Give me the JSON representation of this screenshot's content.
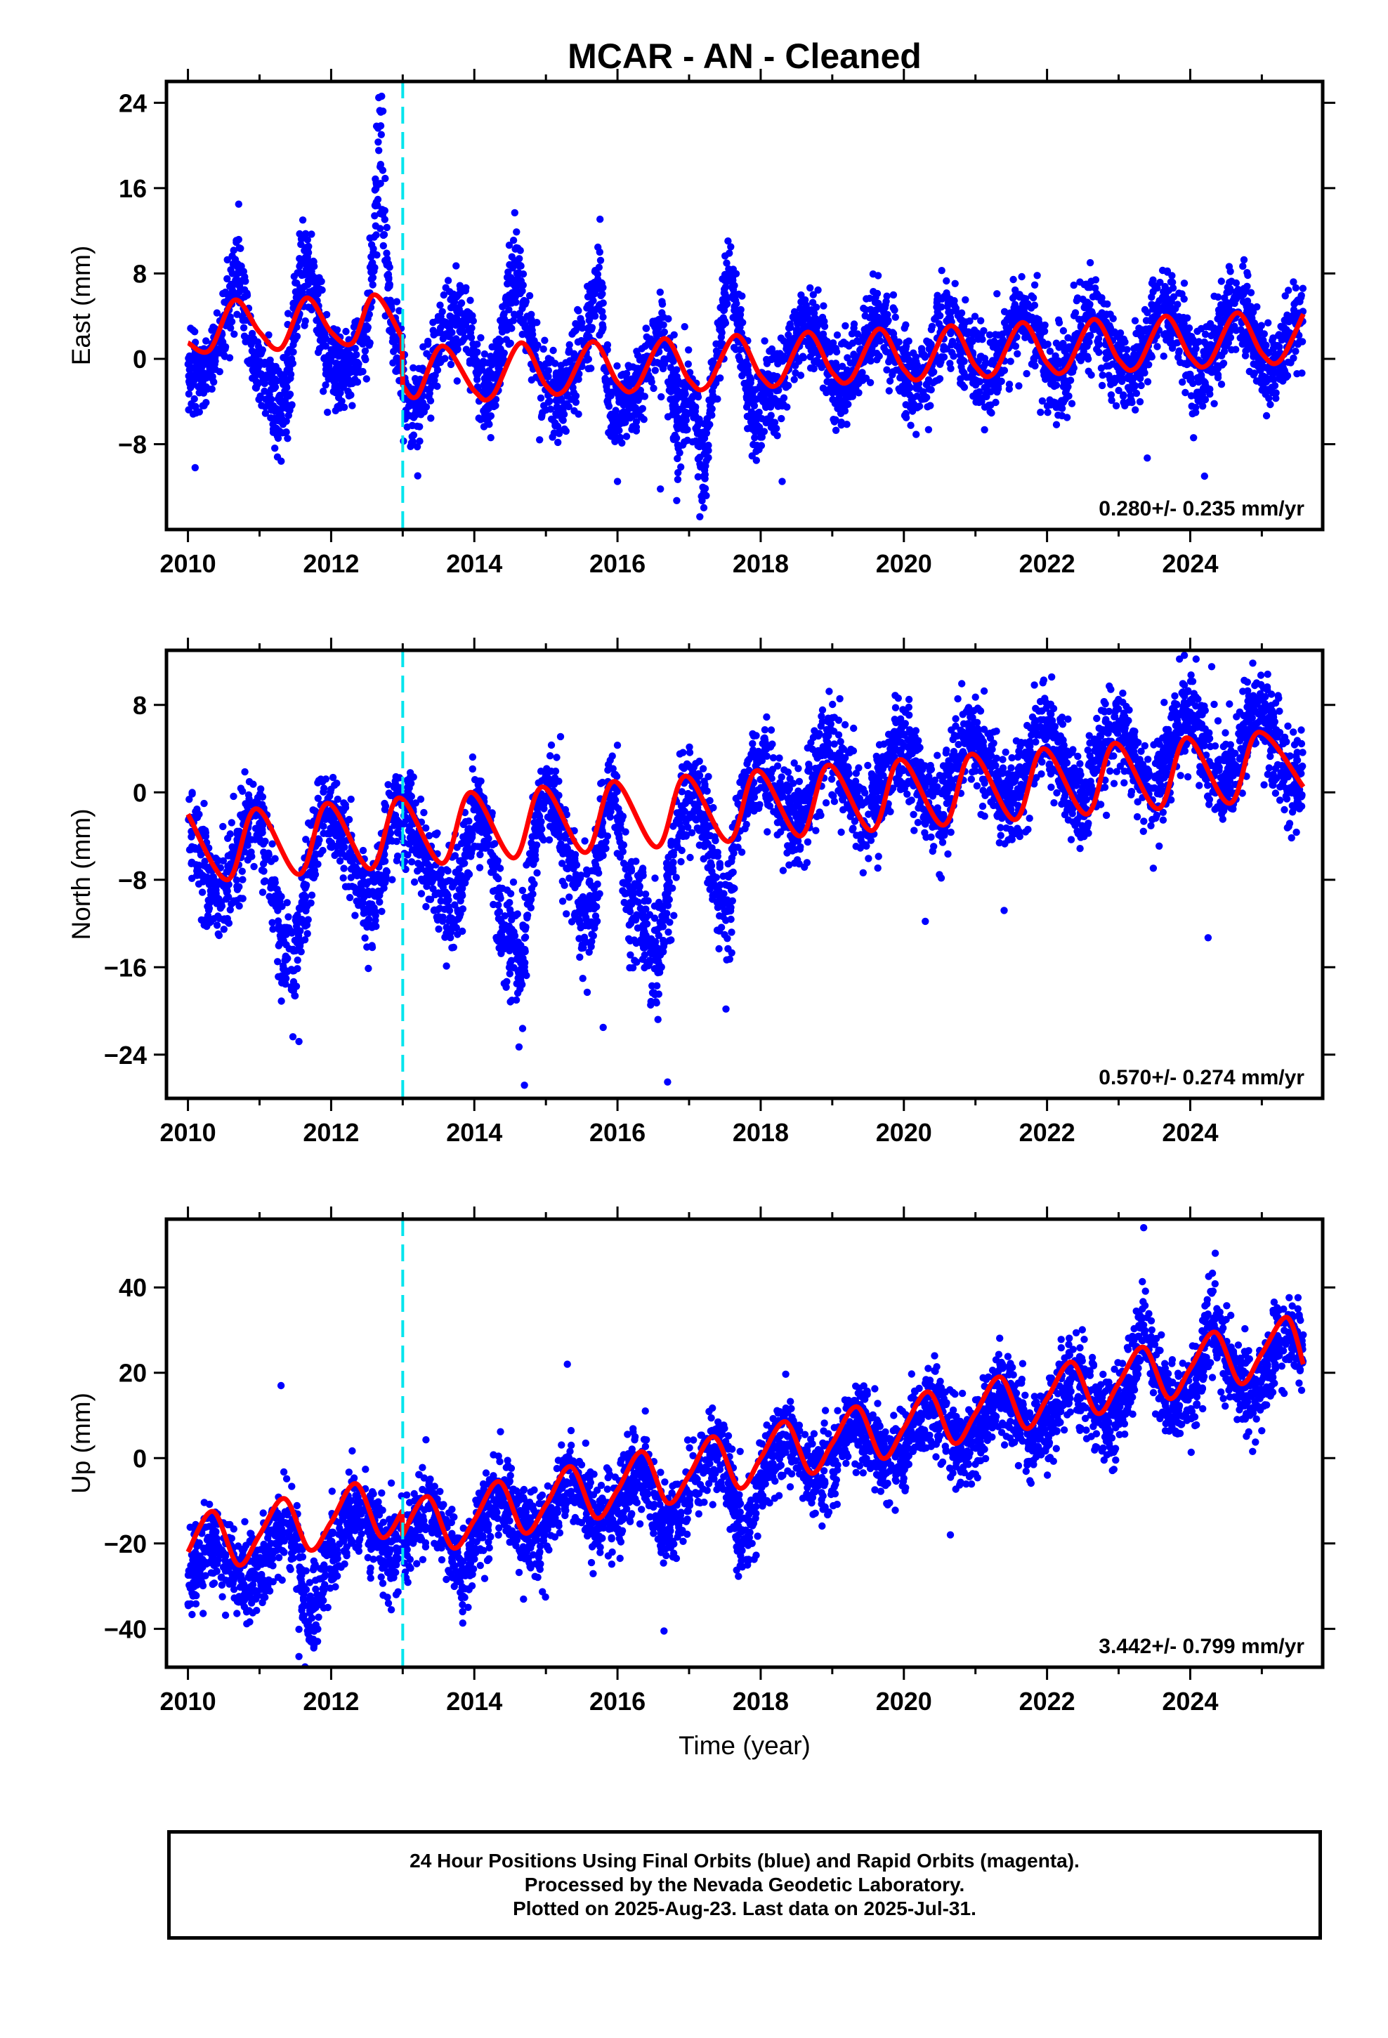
{
  "title": "MCAR  - AN - Cleaned",
  "colors": {
    "data": "#0000ff",
    "model": "#ff0000",
    "offset": "#00e5ee",
    "frame": "#000000"
  },
  "chart_data": [
    {
      "type": "scatter",
      "ylabel": "East (mm)",
      "xlim": [
        2009.7,
        2025.85
      ],
      "ylim": [
        -16,
        26
      ],
      "xticks": [
        2010,
        2012,
        2014,
        2016,
        2018,
        2020,
        2022,
        2024
      ],
      "yticks": [
        -8,
        0,
        8,
        16,
        24
      ],
      "ytick_labels": [
        "−8",
        "0",
        "8",
        "16",
        "24"
      ],
      "rate": "0.280+/- 0.235 mm/yr",
      "offset_line_x": 2013.0,
      "model": {
        "x": [
          2010.0,
          2010.3,
          2010.65,
          2011.0,
          2011.3,
          2011.65,
          2012.0,
          2012.3,
          2012.6,
          2012.99,
          2013.0,
          2013.2,
          2013.55,
          2014.0,
          2014.25,
          2014.65,
          2015.0,
          2015.25,
          2015.65,
          2016.0,
          2016.25,
          2016.65,
          2017.0,
          2017.25,
          2017.65,
          2018.0,
          2018.25,
          2018.65,
          2019.0,
          2019.25,
          2019.65,
          2020.0,
          2020.25,
          2020.65,
          2021.0,
          2021.25,
          2021.65,
          2022.0,
          2022.25,
          2022.65,
          2023.0,
          2023.25,
          2023.65,
          2024.0,
          2024.25,
          2024.65,
          2025.0,
          2025.25,
          2025.58
        ],
        "y": [
          1.5,
          0.8,
          5.5,
          2.5,
          1.0,
          5.7,
          2.5,
          1.5,
          6.0,
          2.0,
          -2.5,
          -3.5,
          1.2,
          -3.0,
          -3.5,
          1.5,
          -2.5,
          -3.0,
          1.6,
          -2.2,
          -2.8,
          1.9,
          -2.0,
          -2.6,
          2.2,
          -1.6,
          -2.3,
          2.5,
          -1.3,
          -2.0,
          2.8,
          -1.0,
          -1.7,
          3.1,
          -0.7,
          -1.4,
          3.4,
          -0.4,
          -1.1,
          3.7,
          -0.1,
          -0.8,
          4.0,
          0.2,
          -0.5,
          4.3,
          0.5,
          -0.2,
          4.2
        ]
      },
      "scatter": {
        "seed": 11,
        "t0": 2010.0,
        "t1": 2025.58,
        "count": 4300,
        "trend": 0.28,
        "intercept_year": 2018.0,
        "intercept": 0.0,
        "amplitude": 2.9,
        "phase_year": 2010.65,
        "step": {
          "year": 2013.0,
          "before": 3.2,
          "after": 0.0
        },
        "noise": 2.0,
        "excursions": [
          {
            "t": 2012.68,
            "w": 0.09,
            "d": 17.0
          },
          {
            "t": 2010.7,
            "w": 0.12,
            "d": 4.5
          },
          {
            "t": 2011.62,
            "w": 0.18,
            "d": 5.0
          },
          {
            "t": 2013.9,
            "w": 0.22,
            "d": 4.5
          },
          {
            "t": 2014.55,
            "w": 0.18,
            "d": 7.0
          },
          {
            "t": 2015.75,
            "w": 0.12,
            "d": 6.5
          },
          {
            "t": 2017.55,
            "w": 0.1,
            "d": 6.0
          },
          {
            "t": 2015.9,
            "w": 0.12,
            "d": -7.0
          },
          {
            "t": 2016.85,
            "w": 0.15,
            "d": -7.0
          },
          {
            "t": 2017.2,
            "w": 0.1,
            "d": -8.0
          },
          {
            "t": 2017.9,
            "w": 0.12,
            "d": -5.5
          },
          {
            "t": 2011.35,
            "w": 0.18,
            "d": -5.0
          }
        ],
        "outliers": [
          [
            2010.1,
            -10.2
          ],
          [
            2011.25,
            -9.2
          ],
          [
            2016.0,
            -11.5
          ],
          [
            2017.15,
            -14.8
          ],
          [
            2018.3,
            -11.5
          ],
          [
            2023.4,
            -9.3
          ],
          [
            2024.2,
            -11.0
          ],
          [
            2016.6,
            -12.2
          ],
          [
            2021.3,
            6.1
          ],
          [
            2022.6,
            6.7
          ]
        ]
      }
    },
    {
      "type": "scatter",
      "ylabel": "North (mm)",
      "xlim": [
        2009.7,
        2025.85
      ],
      "ylim": [
        -28,
        13
      ],
      "xticks": [
        2010,
        2012,
        2014,
        2016,
        2018,
        2020,
        2022,
        2024
      ],
      "yticks": [
        -24,
        -16,
        -8,
        0,
        8
      ],
      "ytick_labels": [
        "−24",
        "−16",
        "−8",
        "0",
        "8"
      ],
      "rate": "0.570+/- 0.274 mm/yr",
      "offset_line_x": 2013.0,
      "model": {
        "x": [
          2010.0,
          2010.55,
          2010.95,
          2011.55,
          2011.95,
          2012.55,
          2012.95,
          2013.55,
          2013.95,
          2014.55,
          2014.95,
          2015.55,
          2015.95,
          2016.55,
          2016.95,
          2017.55,
          2017.95,
          2018.55,
          2018.95,
          2019.55,
          2019.95,
          2020.55,
          2020.95,
          2021.55,
          2021.95,
          2022.55,
          2022.95,
          2023.55,
          2023.95,
          2024.55,
          2024.95,
          2025.58
        ],
        "y": [
          -2.0,
          -8.0,
          -1.5,
          -7.5,
          -1.0,
          -7.0,
          -0.5,
          -6.5,
          0.0,
          -6.0,
          0.5,
          -5.5,
          1.0,
          -5.0,
          1.5,
          -4.5,
          2.0,
          -4.0,
          2.5,
          -3.5,
          3.0,
          -3.0,
          3.5,
          -2.5,
          4.0,
          -2.0,
          4.5,
          -1.5,
          5.0,
          -1.0,
          5.5,
          0.5
        ]
      },
      "scatter": {
        "seed": 23,
        "t0": 2010.0,
        "t1": 2025.58,
        "count": 4300,
        "trend": 0.57,
        "intercept_year": 2018.0,
        "intercept": 0.0,
        "amplitude": 3.2,
        "phase_year": 2010.95,
        "step": {
          "year": 2017.95,
          "before": -1.5,
          "after": 0.0
        },
        "noise": 2.1,
        "excursions": [
          {
            "t": 2011.4,
            "w": 0.25,
            "d": -8.0
          },
          {
            "t": 2012.6,
            "w": 0.15,
            "d": -4.0
          },
          {
            "t": 2013.75,
            "w": 0.2,
            "d": -8.0
          },
          {
            "t": 2014.65,
            "w": 0.18,
            "d": -12.0
          },
          {
            "t": 2015.6,
            "w": 0.2,
            "d": -7.0
          },
          {
            "t": 2016.55,
            "w": 0.28,
            "d": -11.0
          },
          {
            "t": 2017.5,
            "w": 0.15,
            "d": -7.0
          },
          {
            "t": 2014.4,
            "w": 0.1,
            "d": -6.0
          },
          {
            "t": 2016.15,
            "w": 0.12,
            "d": -8.0
          }
        ],
        "outliers": [
          [
            2011.55,
            -22.8
          ],
          [
            2014.7,
            -26.8
          ],
          [
            2016.7,
            -26.5
          ],
          [
            2015.8,
            -21.5
          ],
          [
            2023.85,
            12.2
          ],
          [
            2024.25,
            -13.3
          ],
          [
            2021.4,
            -10.8
          ],
          [
            2020.3,
            -11.8
          ],
          [
            2024.3,
            11.5
          ]
        ]
      }
    },
    {
      "type": "scatter",
      "ylabel": "Up (mm)",
      "xlabel": "Time (year)",
      "xlim": [
        2009.7,
        2025.85
      ],
      "ylim": [
        -49,
        56
      ],
      "xticks": [
        2010,
        2012,
        2014,
        2016,
        2018,
        2020,
        2022,
        2024
      ],
      "yticks": [
        -40,
        -20,
        0,
        20,
        40
      ],
      "ytick_labels": [
        "−40",
        "−20",
        "0",
        "20",
        "40"
      ],
      "rate": "3.442+/- 0.799 mm/yr",
      "offset_line_x": 2013.0,
      "model": {
        "x": [
          2010.0,
          2010.35,
          2010.7,
          2011.0,
          2011.35,
          2011.7,
          2012.0,
          2012.35,
          2012.7,
          2012.99,
          2013.0,
          2013.35,
          2013.7,
          2014.0,
          2014.35,
          2014.7,
          2015.0,
          2015.35,
          2015.7,
          2016.0,
          2016.35,
          2016.7,
          2017.0,
          2017.35,
          2017.7,
          2018.0,
          2018.35,
          2018.7,
          2019.0,
          2019.35,
          2019.7,
          2020.0,
          2020.35,
          2020.7,
          2021.0,
          2021.35,
          2021.7,
          2022.0,
          2022.35,
          2022.7,
          2023.0,
          2023.35,
          2023.7,
          2024.0,
          2024.35,
          2024.7,
          2025.0,
          2025.35,
          2025.58
        ],
        "y": [
          -22.0,
          -12.5,
          -25.0,
          -18.0,
          -9.5,
          -21.5,
          -15.0,
          -6.0,
          -18.5,
          -12.5,
          -18.0,
          -9.0,
          -21.0,
          -14.5,
          -5.5,
          -17.5,
          -11.0,
          -2.0,
          -14.0,
          -7.5,
          1.5,
          -10.5,
          -4.0,
          5.0,
          -7.0,
          0.0,
          8.5,
          -3.5,
          3.5,
          12.0,
          0.0,
          7.0,
          15.5,
          3.5,
          10.5,
          19.0,
          7.0,
          14.0,
          22.5,
          10.5,
          17.5,
          26.0,
          14.0,
          21.0,
          29.5,
          17.5,
          24.5,
          33.0,
          22.0
        ]
      },
      "scatter": {
        "seed": 37,
        "t0": 2010.0,
        "t1": 2025.58,
        "count": 4300,
        "trend": 3.442,
        "intercept_year": 2018.0,
        "intercept": -2.0,
        "amplitude": 5.5,
        "phase_year": 2010.35,
        "step": {
          "year": 2013.0,
          "before": 3.0,
          "after": 0.0
        },
        "noise": 5.0,
        "excursions": [
          {
            "t": 2011.7,
            "w": 0.15,
            "d": -14.0
          },
          {
            "t": 2013.85,
            "w": 0.1,
            "d": -8.0
          },
          {
            "t": 2016.6,
            "w": 0.2,
            "d": -10.0
          },
          {
            "t": 2017.75,
            "w": 0.15,
            "d": -12.0
          },
          {
            "t": 2023.35,
            "w": 0.1,
            "d": 10.0
          },
          {
            "t": 2024.3,
            "w": 0.1,
            "d": 8.0
          }
        ],
        "outliers": [
          [
            2011.55,
            -46.5
          ],
          [
            2016.65,
            -40.5
          ],
          [
            2023.35,
            54.0
          ],
          [
            2024.35,
            48.0
          ],
          [
            2020.65,
            -18.0
          ],
          [
            2011.3,
            17.0
          ],
          [
            2012.8,
            -34.0
          ],
          [
            2015.3,
            22.0
          ]
        ]
      }
    }
  ],
  "footer": {
    "line1": "24 Hour Positions Using Final Orbits (blue) and Rapid Orbits (magenta).",
    "line2": "Processed by the Nevada Geodetic Laboratory.",
    "line3": "Plotted on 2025-Aug-23. Last data on 2025-Jul-31."
  }
}
